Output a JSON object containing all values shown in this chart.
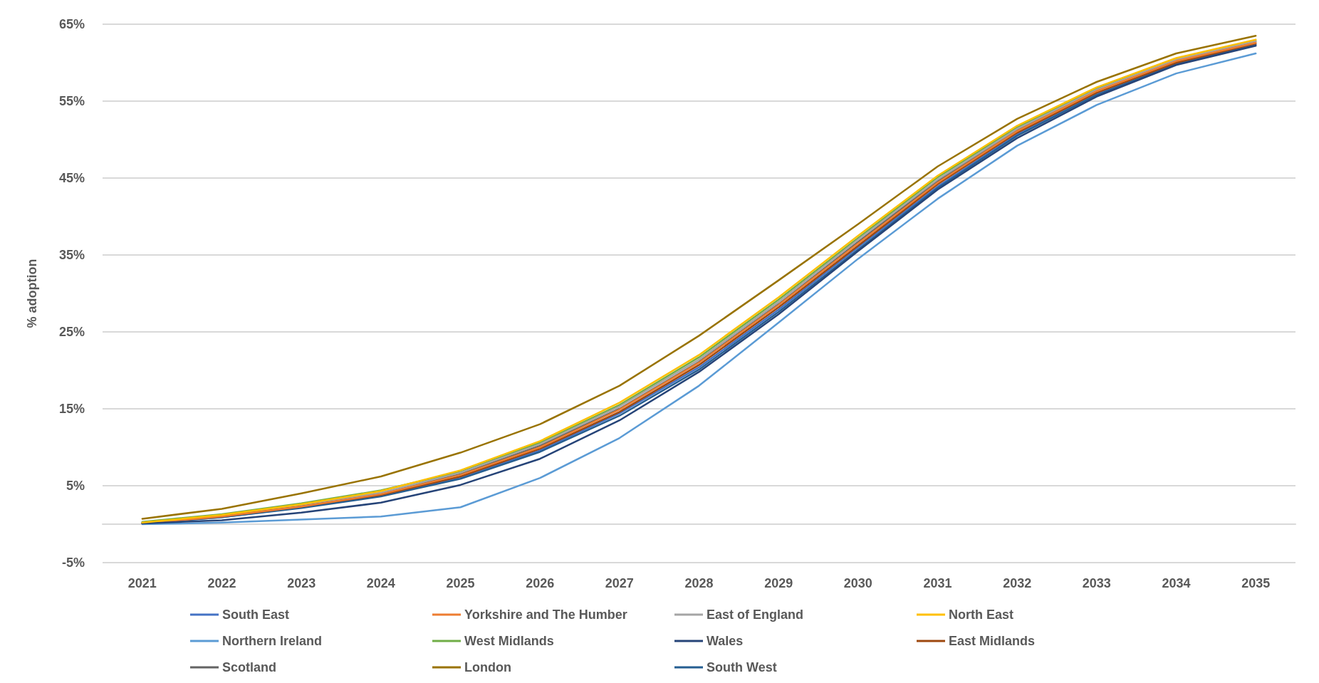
{
  "chart_data": {
    "type": "line",
    "ylabel": "% adoption",
    "categories": [
      "2021",
      "2022",
      "2023",
      "2024",
      "2025",
      "2026",
      "2027",
      "2028",
      "2029",
      "2030",
      "2031",
      "2032",
      "2033",
      "2034",
      "2035"
    ],
    "ylim": [
      -5,
      65
    ],
    "yticks": [
      {
        "value": -5,
        "label": "-5%"
      },
      {
        "value": 5,
        "label": "5%"
      },
      {
        "value": 15,
        "label": "15%"
      },
      {
        "value": 25,
        "label": "25%"
      },
      {
        "value": 35,
        "label": "35%"
      },
      {
        "value": 45,
        "label": "45%"
      },
      {
        "value": 55,
        "label": "55%"
      },
      {
        "value": 65,
        "label": "65%"
      }
    ],
    "grid": "y",
    "legend": "bottom",
    "marker": "none",
    "line_style": "solid",
    "series": [
      {
        "name": "South East",
        "color": "#4472c4",
        "values": [
          0.1,
          0.9,
          2.2,
          3.7,
          6.1,
          9.6,
          14.4,
          20.4,
          27.9,
          36.0,
          43.9,
          50.7,
          56.0,
          59.9,
          62.4
        ]
      },
      {
        "name": "Yorkshire and The Humber",
        "color": "#ed7d31",
        "values": [
          0.1,
          1.0,
          2.3,
          3.9,
          6.4,
          10.0,
          14.9,
          21.0,
          28.5,
          36.5,
          44.4,
          51.1,
          56.3,
          60.2,
          62.6
        ]
      },
      {
        "name": "East of England",
        "color": "#a5a5a5",
        "values": [
          0.2,
          1.1,
          2.5,
          4.1,
          6.7,
          10.4,
          15.3,
          21.4,
          28.9,
          37.0,
          44.8,
          51.4,
          56.5,
          60.4,
          62.8
        ]
      },
      {
        "name": "North East",
        "color": "#ffc000",
        "values": [
          0.2,
          1.2,
          2.6,
          4.3,
          7.0,
          10.8,
          15.8,
          22.0,
          29.5,
          37.5,
          45.3,
          51.8,
          56.8,
          60.6,
          63.0
        ]
      },
      {
        "name": "Northern Ireland",
        "color": "#5b9bd5",
        "values": [
          0.0,
          0.2,
          0.6,
          1.0,
          2.2,
          6.0,
          11.2,
          18.0,
          26.2,
          34.5,
          42.3,
          49.2,
          54.5,
          58.6,
          61.2
        ]
      },
      {
        "name": "West Midlands",
        "color": "#70ad47",
        "values": [
          0.3,
          1.3,
          2.7,
          4.4,
          6.8,
          10.6,
          15.5,
          21.7,
          29.2,
          37.2,
          45.1,
          51.6,
          56.6,
          60.5,
          62.9
        ]
      },
      {
        "name": "Wales",
        "color": "#264478",
        "values": [
          0.1,
          0.5,
          1.5,
          2.8,
          5.1,
          8.5,
          13.5,
          19.8,
          27.3,
          35.5,
          43.5,
          50.2,
          55.6,
          59.7,
          62.2
        ]
      },
      {
        "name": "East Midlands",
        "color": "#9e480e",
        "values": [
          0.1,
          1.0,
          2.3,
          3.8,
          6.2,
          9.8,
          14.6,
          20.7,
          28.2,
          36.2,
          44.2,
          50.9,
          56.1,
          60.0,
          62.5
        ]
      },
      {
        "name": "Scotland",
        "color": "#636363",
        "values": [
          0.2,
          1.1,
          2.4,
          4.0,
          6.5,
          10.2,
          15.0,
          21.1,
          28.6,
          36.7,
          44.6,
          51.2,
          56.4,
          60.2,
          62.7
        ]
      },
      {
        "name": "London",
        "color": "#997300",
        "values": [
          0.7,
          2.0,
          4.0,
          6.2,
          9.3,
          13.0,
          18.0,
          24.5,
          31.7,
          39.0,
          46.5,
          52.7,
          57.5,
          61.2,
          63.5
        ]
      },
      {
        "name": "South West",
        "color": "#255e91",
        "values": [
          0.1,
          0.9,
          2.1,
          3.6,
          5.9,
          9.4,
          14.1,
          20.1,
          27.6,
          35.7,
          43.7,
          50.5,
          55.8,
          59.8,
          62.3
        ]
      }
    ]
  }
}
